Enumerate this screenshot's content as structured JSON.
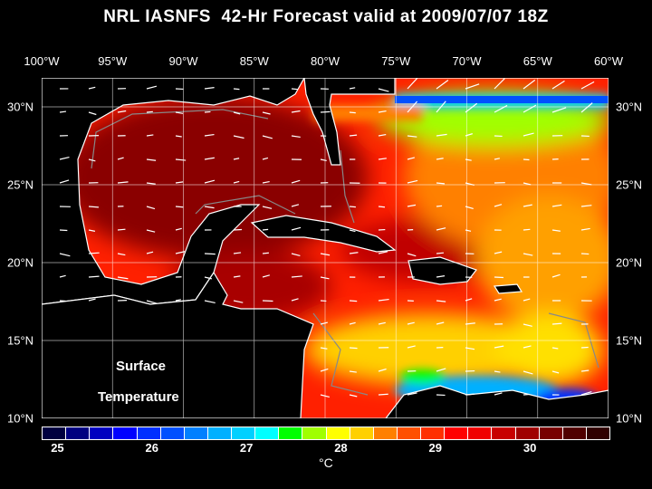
{
  "title": "NRL IASNFS  42-Hr Forecast valid at 2009/07/07 18Z",
  "lon_labels": [
    "100°W",
    "95°W",
    "90°W",
    "85°W",
    "80°W",
    "75°W",
    "70°W",
    "65°W",
    "60°W"
  ],
  "lat_labels": [
    "30°N",
    "25°N",
    "20°N",
    "15°N",
    "10°N"
  ],
  "map_label": {
    "line1": "Surface",
    "line2": "Temperature"
  },
  "colorbar": {
    "colors": [
      "#000040",
      "#000080",
      "#0000c0",
      "#0000ff",
      "#0030ff",
      "#0050ff",
      "#0080ff",
      "#00b0ff",
      "#00d0ff",
      "#00ffff",
      "#00ff00",
      "#a0ff00",
      "#ffff00",
      "#ffd000",
      "#ff8000",
      "#ff5000",
      "#ff3000",
      "#ff0000",
      "#f00000",
      "#c80000",
      "#a00000",
      "#780000",
      "#500000",
      "#300000"
    ],
    "ticks": [
      "25",
      "26",
      "27",
      "28",
      "29",
      "30"
    ],
    "unit": "°C",
    "range": [
      24.833,
      30.833
    ]
  }
}
